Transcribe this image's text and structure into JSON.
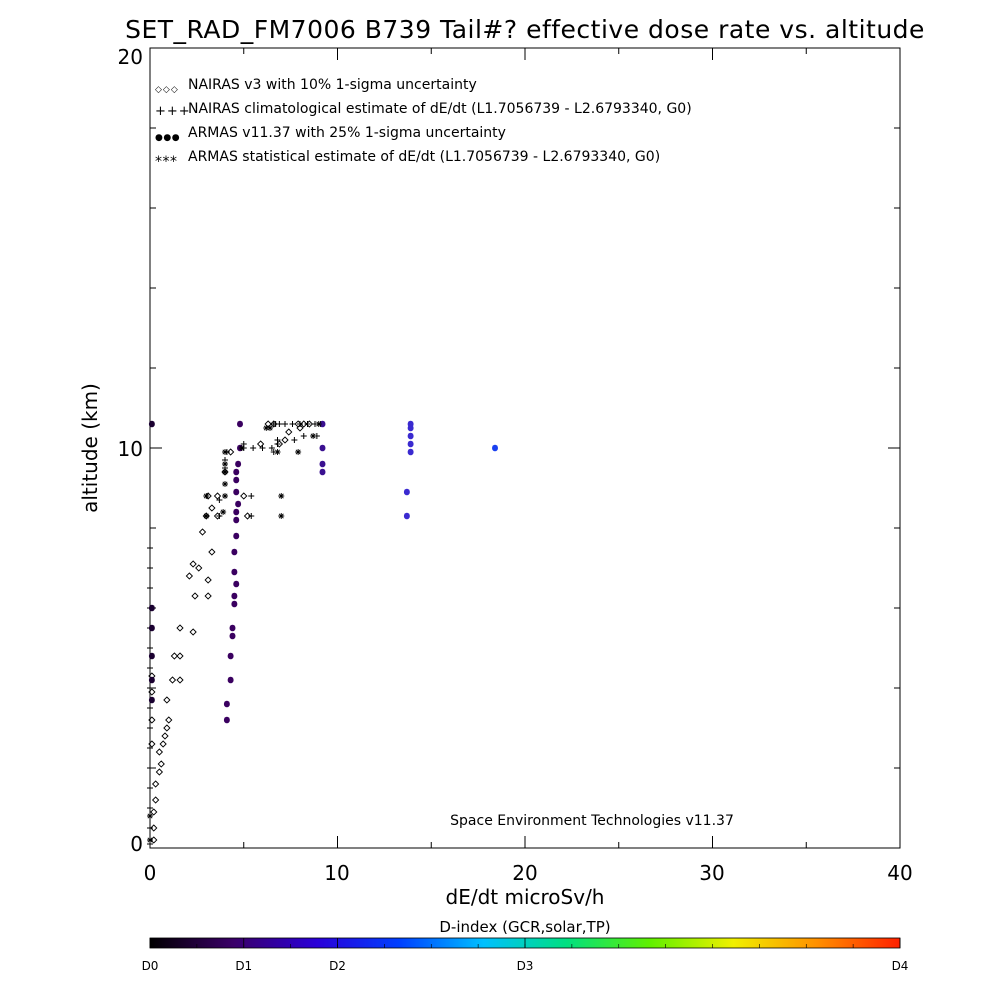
{
  "chart_data": {
    "type": "scatter",
    "title": "SET_RAD_FM7006  B739 Tail#? effective dose rate vs. altitude",
    "xlabel": "dE/dt microSv/h",
    "ylabel": "altitude (km)",
    "xlim": [
      0,
      40
    ],
    "ylim": [
      0,
      20
    ],
    "x_ticks": [
      "0",
      "10",
      "20",
      "30",
      "40"
    ],
    "y_ticks": [
      "0",
      "10",
      "20"
    ],
    "credit": "Space Environment Technologies v11.37",
    "legend_position": "top-left",
    "grid": false,
    "legend": [
      {
        "symbol_text": "◇◇◇",
        "label": "NAIRAS v3 with 10% 1-sigma uncertainty"
      },
      {
        "symbol_text": "+++",
        "label": "NAIRAS climatological estimate of dE/dt (L1.7056739 - L2.6793340, G0)"
      },
      {
        "symbol_text": "●●●",
        "label": "ARMAS v11.37 with 25% 1-sigma uncertainty"
      },
      {
        "symbol_text": "***",
        "label": "ARMAS statistical estimate of dE/dt (L1.7056739 - L2.6793340, G0)"
      }
    ],
    "colorbar": {
      "title": "D-index (GCR,solar,TP)",
      "labels": [
        {
          "text": "D0",
          "frac": 0.0
        },
        {
          "text": "D1",
          "frac": 0.125
        },
        {
          "text": "D2",
          "frac": 0.25
        },
        {
          "text": "D3",
          "frac": 0.5
        },
        {
          "text": "D4",
          "frac": 1.0
        }
      ],
      "colors": [
        "#000000",
        "#3a0068",
        "#2a00d8",
        "#0040ff",
        "#00c0ff",
        "#00e080",
        "#60f000",
        "#f0f000",
        "#ff9000",
        "#ff2000"
      ]
    },
    "series": [
      {
        "name": "NAIRAS v3 with 10% 1-sigma uncertainty",
        "marker": "diamond",
        "points": [
          [
            0.2,
            0.2
          ],
          [
            0.2,
            0.5
          ],
          [
            0.2,
            0.9
          ],
          [
            0.3,
            1.2
          ],
          [
            0.3,
            1.6
          ],
          [
            0.5,
            1.9
          ],
          [
            0.6,
            2.1
          ],
          [
            0.7,
            2.6
          ],
          [
            0.5,
            2.4
          ],
          [
            0.8,
            2.8
          ],
          [
            0.9,
            3.0
          ],
          [
            1.0,
            3.2
          ],
          [
            0.9,
            3.7
          ],
          [
            1.2,
            4.2
          ],
          [
            1.6,
            4.2
          ],
          [
            1.3,
            4.8
          ],
          [
            1.6,
            4.8
          ],
          [
            1.6,
            5.5
          ],
          [
            2.3,
            5.4
          ],
          [
            2.4,
            6.3
          ],
          [
            2.1,
            6.8
          ],
          [
            3.1,
            6.3
          ],
          [
            3.1,
            6.7
          ],
          [
            2.6,
            7.0
          ],
          [
            2.3,
            7.1
          ],
          [
            3.3,
            7.4
          ],
          [
            2.8,
            7.9
          ],
          [
            3.0,
            8.3
          ],
          [
            3.6,
            8.3
          ],
          [
            3.1,
            8.8
          ],
          [
            3.6,
            8.8
          ],
          [
            3.3,
            8.5
          ],
          [
            4.0,
            9.4
          ],
          [
            4.3,
            9.9
          ],
          [
            5.2,
            8.3
          ],
          [
            5.0,
            8.8
          ],
          [
            6.9,
            10.1
          ],
          [
            7.2,
            10.2
          ],
          [
            7.4,
            10.4
          ],
          [
            7.9,
            10.6
          ],
          [
            5.9,
            10.1
          ],
          [
            6.3,
            10.6
          ],
          [
            6.6,
            10.6
          ],
          [
            8.0,
            10.5
          ],
          [
            8.2,
            10.6
          ],
          [
            8.5,
            10.6
          ],
          [
            0.1,
            4.3
          ],
          [
            0.1,
            3.9
          ],
          [
            0.1,
            3.2
          ],
          [
            0.1,
            2.6
          ]
        ]
      },
      {
        "name": "NAIRAS climatological estimate of dE/dt (L1.7056739 - L2.6793340, G0)",
        "marker": "plus",
        "points": [
          [
            0.0,
            0.1
          ],
          [
            0.0,
            0.5
          ],
          [
            0.0,
            1.0
          ],
          [
            0.0,
            1.5
          ],
          [
            0.0,
            2.0
          ],
          [
            0.0,
            2.5
          ],
          [
            0.0,
            3.0
          ],
          [
            0.0,
            3.5
          ],
          [
            0.0,
            4.0
          ],
          [
            0.0,
            4.5
          ],
          [
            0.0,
            5.0
          ],
          [
            0.0,
            5.5
          ],
          [
            0.0,
            6.0
          ],
          [
            0.0,
            6.5
          ],
          [
            0.0,
            7.0
          ],
          [
            0.0,
            7.5
          ],
          [
            3.7,
            8.3
          ],
          [
            3.7,
            8.7
          ],
          [
            4.0,
            9.5
          ],
          [
            4.0,
            9.7
          ],
          [
            4.1,
            9.9
          ],
          [
            5.4,
            8.8
          ],
          [
            5.4,
            8.3
          ],
          [
            5.0,
            10.0
          ],
          [
            5.5,
            10.0
          ],
          [
            6.0,
            10.0
          ],
          [
            6.5,
            10.0
          ],
          [
            6.8,
            10.1
          ],
          [
            5.0,
            10.1
          ],
          [
            6.6,
            9.9
          ],
          [
            6.6,
            10.6
          ],
          [
            6.9,
            10.6
          ],
          [
            7.2,
            10.6
          ],
          [
            7.6,
            10.6
          ],
          [
            8.0,
            10.6
          ],
          [
            8.4,
            10.6
          ],
          [
            8.8,
            10.6
          ],
          [
            9.1,
            10.6
          ],
          [
            8.2,
            10.3
          ],
          [
            8.9,
            10.3
          ],
          [
            7.7,
            10.2
          ],
          [
            6.8,
            10.2
          ],
          [
            6.7,
            10.6
          ]
        ]
      },
      {
        "name": "ARMAS v11.37 with 25% 1-sigma uncertainty",
        "marker": "dot",
        "points": [
          [
            0.1,
            10.6
          ],
          [
            0.1,
            6.0
          ],
          [
            0.1,
            5.5
          ],
          [
            0.1,
            4.8
          ],
          [
            0.1,
            4.2
          ],
          [
            0.1,
            3.7
          ],
          [
            4.1,
            3.2
          ],
          [
            4.1,
            3.6
          ],
          [
            4.3,
            4.2
          ],
          [
            4.3,
            4.8
          ],
          [
            4.4,
            5.3
          ],
          [
            4.4,
            5.5
          ],
          [
            4.5,
            6.1
          ],
          [
            4.5,
            6.3
          ],
          [
            4.6,
            6.6
          ],
          [
            4.5,
            6.9
          ],
          [
            4.5,
            7.4
          ],
          [
            4.6,
            7.8
          ],
          [
            4.6,
            8.2
          ],
          [
            4.6,
            8.4
          ],
          [
            4.7,
            8.6
          ],
          [
            4.6,
            8.9
          ],
          [
            4.6,
            9.2
          ],
          [
            4.6,
            9.4
          ],
          [
            4.7,
            9.6
          ],
          [
            4.8,
            10.0
          ],
          [
            4.8,
            10.6
          ],
          [
            9.2,
            9.4
          ],
          [
            9.2,
            9.6
          ],
          [
            9.2,
            10.0
          ],
          [
            9.2,
            10.6
          ],
          [
            13.7,
            8.3
          ],
          [
            13.7,
            8.9
          ],
          [
            13.9,
            9.9
          ],
          [
            13.9,
            10.1
          ],
          [
            13.9,
            10.3
          ],
          [
            13.9,
            10.5
          ],
          [
            13.9,
            10.6
          ],
          [
            18.4,
            10.0
          ]
        ]
      },
      {
        "name": "ARMAS statistical estimate of dE/dt (L1.7056739 - L2.6793340, G0)",
        "marker": "asterisk",
        "points": [
          [
            3.0,
            8.3
          ],
          [
            3.0,
            8.8
          ],
          [
            3.9,
            8.4
          ],
          [
            4.0,
            8.8
          ],
          [
            4.0,
            9.1
          ],
          [
            4.0,
            9.4
          ],
          [
            4.0,
            9.6
          ],
          [
            4.0,
            9.9
          ],
          [
            4.9,
            10.0
          ],
          [
            6.8,
            9.9
          ],
          [
            7.0,
            8.3
          ],
          [
            7.0,
            8.8
          ],
          [
            7.9,
            9.9
          ],
          [
            8.7,
            10.3
          ],
          [
            9.0,
            10.6
          ],
          [
            6.2,
            10.5
          ],
          [
            6.4,
            10.5
          ],
          [
            0.0,
            0.2
          ],
          [
            0.0,
            0.8
          ]
        ]
      }
    ]
  }
}
